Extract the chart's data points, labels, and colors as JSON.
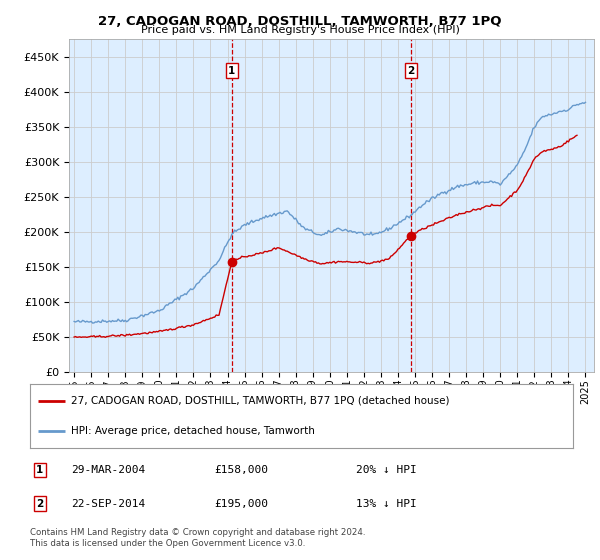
{
  "title": "27, CADOGAN ROAD, DOSTHILL, TAMWORTH, B77 1PQ",
  "subtitle": "Price paid vs. HM Land Registry's House Price Index (HPI)",
  "hpi_color": "#6699cc",
  "price_color": "#cc0000",
  "vline_color": "#cc0000",
  "background_color": "#ddeeff",
  "plot_bg": "#ffffff",
  "legend_label_red": "27, CADOGAN ROAD, DOSTHILL, TAMWORTH, B77 1PQ (detached house)",
  "legend_label_blue": "HPI: Average price, detached house, Tamworth",
  "purchase1_date": "29-MAR-2004",
  "purchase1_price": 158000,
  "purchase1_pct": "20% ↓ HPI",
  "purchase1_year": 2004.25,
  "purchase2_date": "22-SEP-2014",
  "purchase2_price": 195000,
  "purchase2_pct": "13% ↓ HPI",
  "purchase2_year": 2014.75,
  "ylim": [
    0,
    475000
  ],
  "xlim_start": 1994.7,
  "xlim_end": 2025.5,
  "footer": "Contains HM Land Registry data © Crown copyright and database right 2024.\nThis data is licensed under the Open Government Licence v3.0.",
  "yticks": [
    0,
    50000,
    100000,
    150000,
    200000,
    250000,
    300000,
    350000,
    400000,
    450000
  ],
  "xtick_years": [
    1995,
    1996,
    1997,
    1998,
    1999,
    2000,
    2001,
    2002,
    2003,
    2004,
    2005,
    2006,
    2007,
    2008,
    2009,
    2010,
    2011,
    2012,
    2013,
    2014,
    2015,
    2016,
    2017,
    2018,
    2019,
    2020,
    2021,
    2022,
    2023,
    2024,
    2025
  ]
}
